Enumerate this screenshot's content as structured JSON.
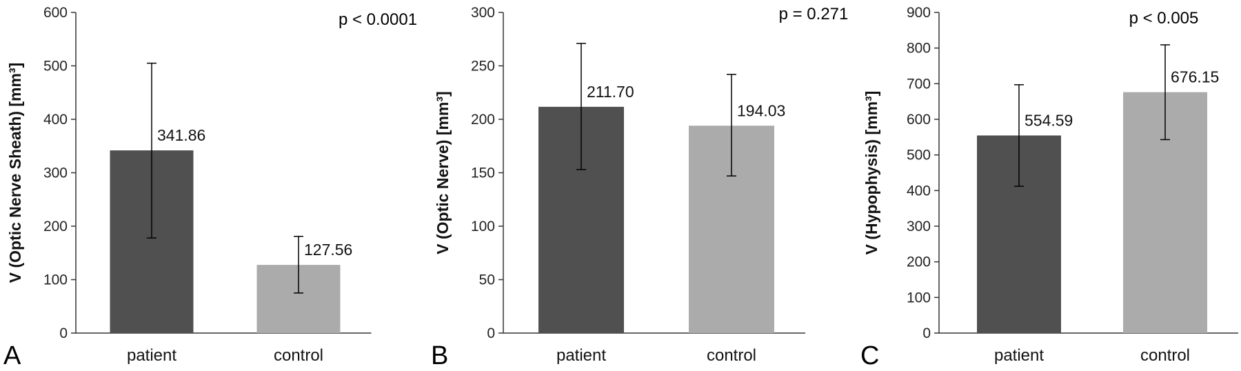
{
  "chart_data": [
    {
      "type": "bar",
      "panel_label": "A",
      "ylabel": "V (Optic Nerve Sheath) [mm³]",
      "categories": [
        "patient",
        "control"
      ],
      "values": [
        341.86,
        127.56
      ],
      "value_labels": [
        "341.86",
        "127.56"
      ],
      "error_low": [
        178,
        75
      ],
      "error_high": [
        505,
        181
      ],
      "ylim": [
        0,
        600
      ],
      "yticks": [
        0,
        100,
        200,
        300,
        400,
        500,
        600
      ],
      "annotation": "p < 0.0001",
      "colors": [
        "#505050",
        "#ababab"
      ],
      "grid": false
    },
    {
      "type": "bar",
      "panel_label": "B",
      "ylabel": "V (Optic Nerve) [mm³]",
      "categories": [
        "patient",
        "control"
      ],
      "values": [
        211.7,
        194.03
      ],
      "value_labels": [
        "211.70",
        "194.03"
      ],
      "error_low": [
        153,
        147
      ],
      "error_high": [
        271,
        242
      ],
      "ylim": [
        0,
        300
      ],
      "yticks": [
        0,
        50,
        100,
        150,
        200,
        250,
        300
      ],
      "annotation": "p = 0.271",
      "colors": [
        "#505050",
        "#ababab"
      ],
      "grid": false
    },
    {
      "type": "bar",
      "panel_label": "C",
      "ylabel": "V (Hypophysis) [mm³]",
      "categories": [
        "patient",
        "control"
      ],
      "values": [
        554.59,
        676.15
      ],
      "value_labels": [
        "554.59",
        "676.15"
      ],
      "error_low": [
        412,
        543
      ],
      "error_high": [
        697,
        809
      ],
      "ylim": [
        0,
        900
      ],
      "yticks": [
        0,
        100,
        200,
        300,
        400,
        500,
        600,
        700,
        800,
        900
      ],
      "annotation": "p < 0.005",
      "colors": [
        "#505050",
        "#ababab"
      ],
      "grid": false
    }
  ]
}
